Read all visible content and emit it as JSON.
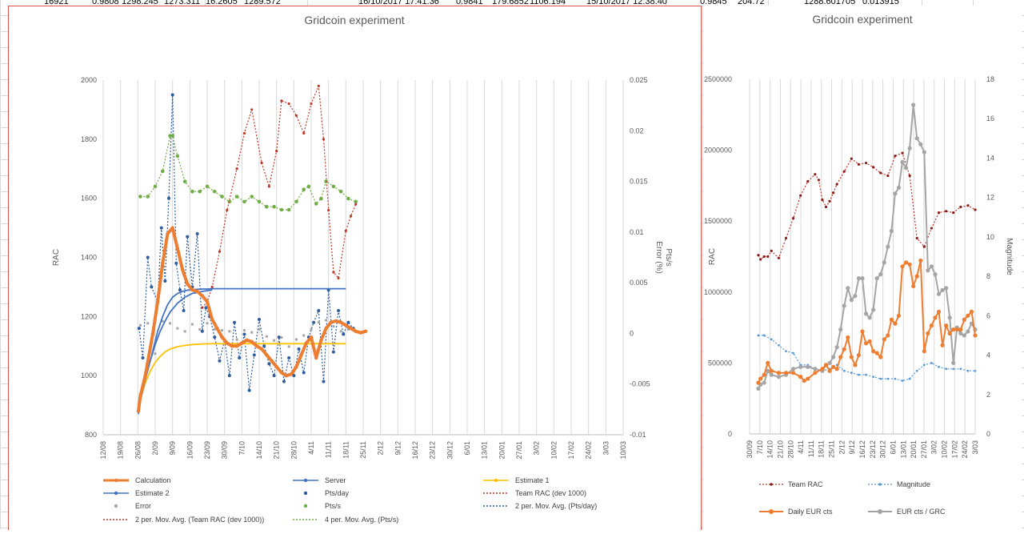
{
  "sheet_top_row": [
    "16921",
    "0.9808",
    "1298.245",
    "1273.311",
    "16.2605",
    "1289.572",
    "16/10/2017 17:41:36",
    "0.9841",
    "179.6852",
    "1106.194",
    "15/10/2017 12:38:40",
    "0.9845",
    "204.72",
    "1288.601705",
    "0.013915"
  ],
  "colors": {
    "calc": "#ed7d31",
    "server": "#4472c4",
    "est1": "#ffc000",
    "est2": "#4472c4",
    "ptsday": "#2e5c9e",
    "team": "#c0392b",
    "error": "#a5a5a5",
    "ptss": "#70ad47",
    "grey": "#a5a5a5",
    "mag": "#5b9bd5"
  },
  "chart_data": [
    {
      "type": "scatter",
      "title": "Gridcoin experiment",
      "ylabel": "RAC",
      "y2label": "Error (%)\nPts/s",
      "ylim": [
        800,
        2000
      ],
      "y2lim": [
        -0.01,
        0.025
      ],
      "y_ticks": [
        "800",
        "1000",
        "1200",
        "1400",
        "1600",
        "1800",
        "2000"
      ],
      "y2_ticks": [
        "-0.01",
        "-0.005",
        "0",
        "0.005",
        "0.01",
        "0.015",
        "0.02",
        "0.025"
      ],
      "x_ticks": [
        "12/08",
        "19/08",
        "26/08",
        "2/09",
        "9/09",
        "16/09",
        "23/09",
        "30/09",
        "7/10",
        "14/10",
        "21/10",
        "28/10",
        "4/11",
        "11/11",
        "18/11",
        "25/11",
        "2/12",
        "9/12",
        "16/12",
        "23/12",
        "30/12",
        "6/01",
        "13/01",
        "20/01",
        "27/01",
        "3/02",
        "10/02",
        "17/02",
        "24/02",
        "3/03",
        "10/03"
      ],
      "legend": [
        "Calculation",
        "Server",
        "Estimate 1",
        "Estimate 2",
        "Pts/day",
        "Team RAC (dev 1000)",
        "Error",
        "Pts/s",
        "2 per. Mov. Avg. (Pts/day)",
        "2 per. Mov. Avg. (Team RAC (dev 1000))",
        "4 per. Mov. Avg. (Pts/s)"
      ],
      "series": [
        {
          "name": "Calculation",
          "x": [
            0.2,
            1,
            3,
            6,
            8,
            10,
            12,
            14,
            16,
            18,
            20,
            22,
            24,
            26,
            28,
            30,
            32,
            34,
            36,
            38,
            40,
            42,
            44,
            46,
            48,
            50,
            52,
            54,
            56,
            58,
            60,
            62,
            64,
            66,
            68,
            70,
            72,
            74,
            76,
            78,
            80,
            82,
            84,
            86,
            88,
            90,
            92
          ],
          "y": [
            880,
            930,
            1000,
            1140,
            1250,
            1380,
            1480,
            1500,
            1430,
            1360,
            1310,
            1290,
            1285,
            1270,
            1250,
            1190,
            1160,
            1130,
            1110,
            1100,
            1100,
            1110,
            1120,
            1115,
            1100,
            1090,
            1070,
            1050,
            1030,
            1010,
            1000,
            1005,
            1030,
            1070,
            1110,
            1130,
            1060,
            1120,
            1160,
            1180,
            1185,
            1180,
            1170,
            1160,
            1150,
            1145,
            1150
          ]
        },
        {
          "name": "Server",
          "x": [
            5.6,
            8,
            10,
            12,
            14,
            16,
            18,
            20,
            22,
            24,
            26,
            28,
            30,
            40,
            50,
            60,
            70,
            84
          ],
          "y": [
            1070,
            1150,
            1200,
            1240,
            1265,
            1278,
            1285,
            1289,
            1291,
            1292,
            1293,
            1293,
            1294,
            1294,
            1294,
            1294,
            1294,
            1294
          ]
        },
        {
          "name": "Estimate 1",
          "x": [
            0.2,
            1,
            3,
            5,
            7,
            9,
            11,
            13,
            16,
            19,
            22,
            26,
            30,
            40,
            50,
            60,
            70,
            84
          ],
          "y": [
            880,
            920,
            975,
            1015,
            1045,
            1065,
            1080,
            1090,
            1098,
            1102,
            1105,
            1107,
            1108,
            1108,
            1108,
            1108,
            1108,
            1108
          ]
        },
        {
          "name": "Estimate 2",
          "x": [
            0.2,
            1,
            3,
            5,
            7,
            9,
            11,
            13,
            16,
            19,
            22,
            26,
            30
          ],
          "y": [
            870,
            915,
            985,
            1050,
            1105,
            1150,
            1185,
            1215,
            1245,
            1265,
            1278,
            1285,
            1290
          ]
        },
        {
          "name": "Team RAC (dev 1000)",
          "x": [
            26,
            28,
            30,
            33,
            36,
            40,
            43,
            46,
            50,
            53,
            56,
            58,
            61,
            64,
            67,
            70,
            73,
            75,
            77,
            79,
            81,
            84,
            86,
            88
          ],
          "y": [
            1230,
            1250,
            1300,
            1420,
            1560,
            1700,
            1820,
            1900,
            1720,
            1640,
            1760,
            1930,
            1920,
            1880,
            1820,
            1920,
            1980,
            1800,
            1560,
            1350,
            1330,
            1490,
            1540,
            1580
          ]
        },
        {
          "name": "Pts/s",
          "x": [
            1,
            4,
            7,
            10,
            13,
            14,
            16,
            19,
            22,
            25,
            28,
            31,
            34,
            37,
            40,
            43,
            46,
            49,
            52,
            55,
            58,
            61,
            64,
            67,
            69,
            72,
            74,
            76,
            79,
            82,
            85,
            88
          ],
          "y": [
            0.0135,
            0.0135,
            0.0145,
            0.016,
            0.0195,
            0.0195,
            0.0175,
            0.015,
            0.014,
            0.014,
            0.0145,
            0.014,
            0.0135,
            0.013,
            0.0135,
            0.013,
            0.0135,
            0.013,
            0.0125,
            0.0125,
            0.0122,
            0.0122,
            0.013,
            0.0142,
            0.0145,
            0.0128,
            0.0133,
            0.015,
            0.0145,
            0.014,
            0.0133,
            0.013
          ]
        },
        {
          "name": "Pts/day",
          "x": [
            0.5,
            2,
            4,
            5.5,
            8,
            9.5,
            11,
            12.5,
            14,
            15.5,
            17,
            18.5,
            20,
            22,
            24,
            26,
            27.5,
            29,
            31,
            33,
            35,
            37,
            39,
            41,
            43,
            45,
            47,
            49,
            51,
            53,
            55,
            57,
            59,
            61,
            63,
            65,
            67,
            69,
            71,
            73,
            75,
            77,
            79,
            81,
            83,
            85,
            87
          ],
          "y": [
            1160,
            1060,
            1400,
            1300,
            1250,
            1500,
            1320,
            1600,
            1950,
            1380,
            1290,
            1220,
            1470,
            1300,
            1480,
            1150,
            1230,
            1200,
            1130,
            1050,
            1120,
            1000,
            1180,
            1060,
            1140,
            950,
            1070,
            1190,
            1100,
            1040,
            1000,
            1130,
            980,
            1060,
            1000,
            1090,
            1010,
            1130,
            1180,
            1220,
            980,
            1290,
            1080,
            1220,
            1140,
            1180,
            1160
          ]
        },
        {
          "name": "Error",
          "x": [
            1,
            4,
            7,
            10,
            13,
            16,
            19,
            22,
            25,
            28,
            31,
            34,
            37,
            40,
            43,
            46,
            49,
            52,
            55,
            58,
            61,
            64,
            67,
            70,
            73,
            76,
            79,
            82,
            85,
            88
          ],
          "y": [
            0.0008,
            0.001,
            -0.002,
            0.0012,
            0.001,
            0.0005,
            0.0002,
            0.0009,
            0.0004,
            0.001,
            0.0004,
            0.0003,
            0.0002,
            -0.0006,
            0.0003,
            0.0001,
            0.0004,
            -0.0003,
            -0.0007,
            -0.0004,
            -0.0013,
            -0.0006,
            -0.0002,
            0.0004,
            0.0011,
            0.0013,
            0.0007,
            0.0002,
            0.0004,
            0.0002
          ]
        }
      ]
    },
    {
      "type": "line",
      "title": "Gridcoin experiment",
      "ylabel": "RAC",
      "y2label": "Magnitude",
      "ylim": [
        0,
        2500000
      ],
      "y2lim": [
        0,
        18
      ],
      "y_ticks": [
        "0",
        "500000",
        "1000000",
        "1500000",
        "2000000",
        "2500000"
      ],
      "y2_ticks": [
        "0",
        "2",
        "4",
        "6",
        "8",
        "10",
        "12",
        "14",
        "16",
        "18"
      ],
      "x_ticks": [
        "30/09",
        "7/10",
        "14/10",
        "21/10",
        "28/10",
        "4/11",
        "11/11",
        "18/11",
        "25/11",
        "2/12",
        "9/12",
        "16/12",
        "23/12",
        "30/12",
        "6/01",
        "13/01",
        "20/01",
        "27/01",
        "3/02",
        "10/02",
        "17/02",
        "24/02",
        "3/03"
      ],
      "legend": [
        "Team RAC",
        "Magnitude",
        "Daily EUR cts",
        "EUR cts / GRC"
      ],
      "series": [
        {
          "name": "Team RAC",
          "x": [
            1.2,
            1.5,
            2,
            2.5,
            3,
            4,
            5,
            6,
            7,
            8,
            9,
            9.5,
            10,
            10.5,
            11,
            11.5,
            12,
            13,
            14,
            15,
            16,
            17,
            18,
            19,
            20,
            21,
            22,
            23,
            24,
            25,
            26,
            27,
            28,
            29,
            30,
            31
          ],
          "y": [
            1260000,
            1230000,
            1250000,
            1250000,
            1290000,
            1240000,
            1380000,
            1520000,
            1680000,
            1780000,
            1830000,
            1790000,
            1650000,
            1600000,
            1640000,
            1700000,
            1760000,
            1850000,
            1940000,
            1900000,
            1910000,
            1880000,
            1840000,
            1820000,
            1960000,
            1980000,
            1820000,
            1380000,
            1320000,
            1450000,
            1560000,
            1570000,
            1560000,
            1600000,
            1610000,
            1580000
          ]
        },
        {
          "name": "Magnitude",
          "x": [
            1.2,
            2,
            3,
            4,
            5,
            6,
            7,
            8,
            9,
            10,
            11,
            12,
            13,
            14,
            15,
            16,
            17,
            18,
            19,
            20,
            21,
            22,
            23,
            24,
            25,
            26,
            27,
            28,
            29,
            30,
            31
          ],
          "y": [
            5,
            5,
            4.8,
            4.5,
            4.2,
            4.1,
            3.5,
            3.5,
            3.3,
            3.2,
            3.3,
            3.5,
            3.2,
            3.1,
            3,
            3,
            2.9,
            2.8,
            2.8,
            2.8,
            2.7,
            2.8,
            3.2,
            3.5,
            3.6,
            3.4,
            3.3,
            3.3,
            3.3,
            3.2,
            3.2
          ]
        },
        {
          "name": "Daily EUR cts",
          "x": [
            1.2,
            1.5,
            2,
            2.5,
            3,
            4,
            5,
            6,
            7,
            7.5,
            8,
            9,
            10,
            10.5,
            11,
            11.5,
            12,
            12.5,
            13,
            13.5,
            14,
            14.5,
            15,
            15.5,
            16,
            16.5,
            17,
            17.5,
            18,
            18.5,
            19,
            19.5,
            20,
            20.5,
            21,
            21.5,
            22,
            22.5,
            23,
            23.5,
            24,
            24.5,
            25,
            25.5,
            26,
            26.5,
            27,
            27.5,
            28,
            28.5,
            29,
            29.5,
            30,
            30.5,
            31
          ],
          "y": [
            2.6,
            2.8,
            3,
            3.6,
            3.2,
            3.1,
            3.1,
            3.1,
            2.9,
            2.7,
            2.8,
            3.1,
            3.3,
            3.5,
            3.2,
            3.4,
            3.3,
            3.9,
            4.3,
            4.9,
            3.9,
            3.5,
            4,
            5.2,
            4.6,
            4.7,
            4.2,
            4.1,
            3.9,
            4.8,
            5,
            5.8,
            5.6,
            6,
            8.5,
            8.7,
            8.6,
            7.5,
            8,
            8.8,
            4.2,
            5.1,
            5.5,
            5.9,
            6.2,
            4.5,
            5.5,
            5.1,
            5.3,
            5.3,
            5.3,
            5.8,
            6,
            6.2,
            5
          ]
        },
        {
          "name": "EUR cts / GRC",
          "x": [
            1.2,
            1.5,
            2,
            2.5,
            3,
            4,
            5,
            6,
            7,
            8,
            9,
            10,
            10.5,
            11,
            11.5,
            12,
            12.5,
            13,
            13.5,
            14,
            14.5,
            15,
            15.5,
            16,
            16.5,
            17,
            17.5,
            18,
            18.5,
            19,
            19.5,
            20,
            20.5,
            21,
            21.5,
            22,
            22.5,
            23,
            23.5,
            24,
            24.5,
            25,
            25.5,
            26,
            26.5,
            27,
            27.5,
            28,
            28.5,
            29,
            29.5,
            30,
            30.5,
            31
          ],
          "y": [
            2.3,
            2.5,
            2.6,
            3.2,
            3,
            2.9,
            3,
            3.3,
            3.4,
            3.4,
            3.3,
            3.2,
            3.5,
            3.6,
            3.9,
            4.4,
            5.3,
            6.5,
            7.4,
            6.8,
            7,
            7.9,
            7.9,
            6.1,
            5.9,
            6.3,
            7.9,
            8.1,
            8.7,
            9.5,
            10.3,
            12.2,
            12.5,
            13.8,
            13.5,
            14.5,
            16.7,
            15,
            14.7,
            14.3,
            8.3,
            8.5,
            8.1,
            7.1,
            7.3,
            7.4,
            5.9,
            3.6,
            5.4,
            5.1,
            5,
            5.2,
            5.6,
            5.3
          ]
        }
      ]
    }
  ]
}
